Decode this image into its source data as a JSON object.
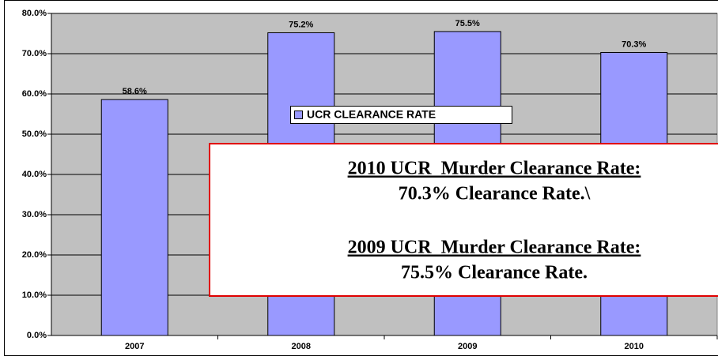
{
  "chart_data": {
    "type": "bar",
    "categories": [
      "2007",
      "2008",
      "2009",
      "2010"
    ],
    "series": [
      {
        "name": "UCR CLEARANCE RATE",
        "color": "#9999ff",
        "values": [
          58.6,
          75.2,
          75.5,
          70.3
        ],
        "value_labels": [
          "58.6%",
          "75.2%",
          "75.5%",
          "70.3%"
        ]
      }
    ],
    "ylim": [
      0,
      80
    ],
    "yticks": [
      {
        "value": 0,
        "label": "0.0%"
      },
      {
        "value": 10,
        "label": "10.0%"
      },
      {
        "value": 20,
        "label": "20.0%"
      },
      {
        "value": 30,
        "label": "30.0%"
      },
      {
        "value": 40,
        "label": "40.0%"
      },
      {
        "value": 50,
        "label": "50.0%"
      },
      {
        "value": 60,
        "label": "60.0%"
      },
      {
        "value": 70,
        "label": "70.0%"
      },
      {
        "value": 80,
        "label": "80.0%"
      }
    ],
    "grid": true,
    "legend": "center",
    "annotations": [
      {
        "heading": "2010 UCR  Murder Clearance Rate:",
        "text": "70.3% Clearance Rate.\\"
      },
      {
        "heading": "2009 UCR  Murder Clearance Rate:",
        "text": "75.5% Clearance Rate."
      }
    ]
  }
}
